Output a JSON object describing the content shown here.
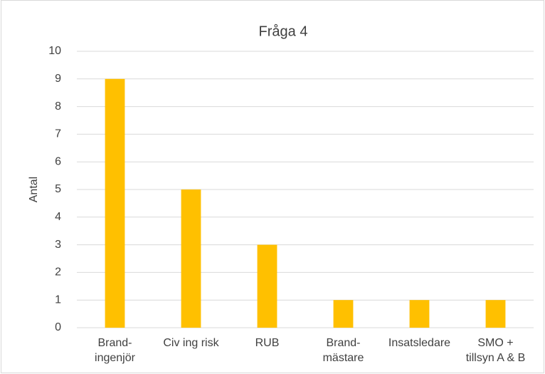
{
  "chart_data": {
    "type": "bar",
    "title": "Fråga 4",
    "y_label": "Antal",
    "categories": [
      "Brand-\ningenjör",
      "Civ ing risk",
      "RUB",
      "Brand-\nmästare",
      "Insatsledare",
      "SMO +\ntillsyn A & B"
    ],
    "values": [
      9,
      5,
      3,
      1,
      1,
      1
    ],
    "color": "#ffc000",
    "ylim": [
      0,
      10
    ],
    "yticks": [
      0,
      1,
      2,
      3,
      4,
      5,
      6,
      7,
      8,
      9,
      10
    ],
    "grid": true
  }
}
